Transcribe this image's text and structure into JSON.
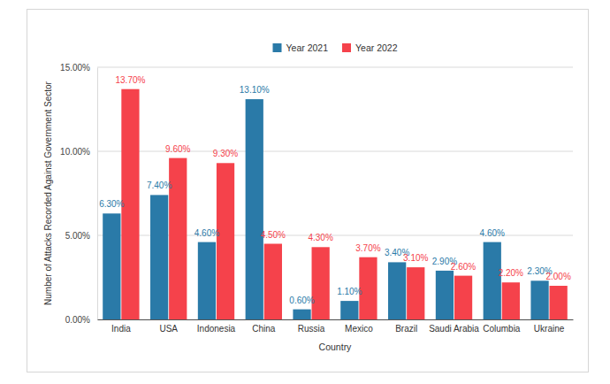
{
  "chart_data": {
    "type": "bar",
    "x_label": "Country",
    "y_label": "Number of Attacks Recorded Against Government Sector",
    "categories": [
      "India",
      "USA",
      "Indonesia",
      "China",
      "Russia",
      "Mexico",
      "Brazil",
      "Saudi Arabia",
      "Columbia",
      "Ukraine"
    ],
    "series": [
      {
        "name": "Year 2021",
        "color": "#2a7aa8",
        "values": [
          6.3,
          7.4,
          4.6,
          13.1,
          0.6,
          1.1,
          3.4,
          2.9,
          4.6,
          2.3
        ],
        "value_labels": [
          "6.30%",
          "7.40%",
          "4.60%",
          "13.10%",
          "0.60%",
          "1.10%",
          "3.40%",
          "2.90%",
          "4.60%",
          "2.30%"
        ]
      },
      {
        "name": "Year 2022",
        "color": "#f5424b",
        "values": [
          13.7,
          9.6,
          9.3,
          4.5,
          4.3,
          3.7,
          3.1,
          2.6,
          2.2,
          2.0
        ],
        "value_labels": [
          "13.70%",
          "9.60%",
          "9.30%",
          "4.50%",
          "4.30%",
          "3.70%",
          "3.10%",
          "2.60%",
          "2.20%",
          "2.00%"
        ]
      }
    ],
    "ylim": [
      0,
      15
    ],
    "yticks": [
      {
        "value": 0,
        "label": "0.00%"
      },
      {
        "value": 5,
        "label": "5.00%"
      },
      {
        "value": 10,
        "label": "10.00%"
      },
      {
        "value": 15,
        "label": "15.00%"
      }
    ],
    "grid": true,
    "legend": "top",
    "data_labels": true
  }
}
